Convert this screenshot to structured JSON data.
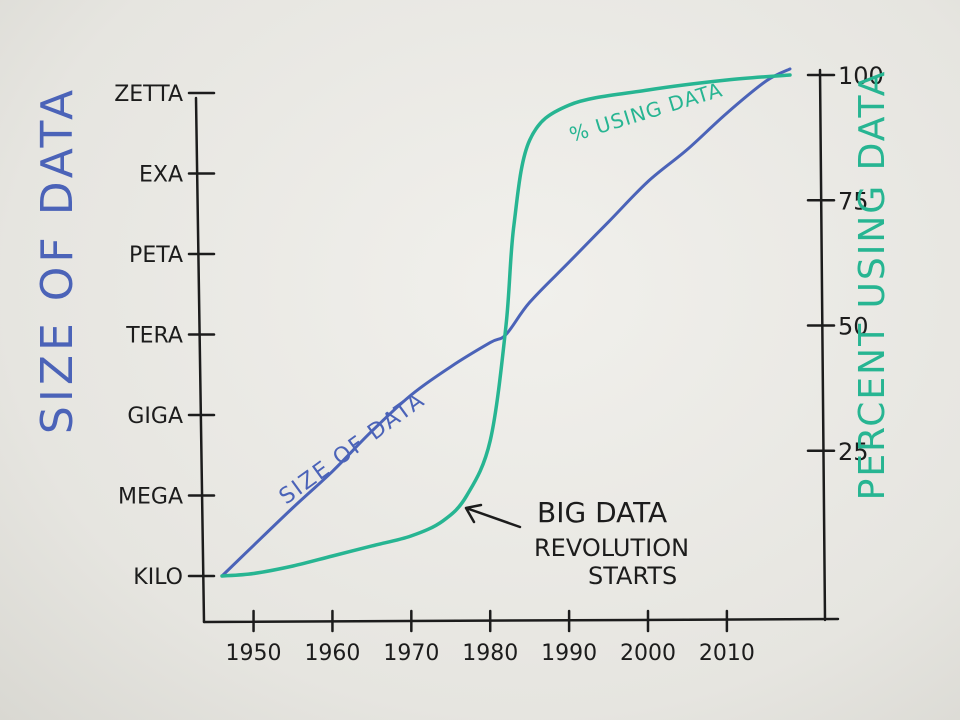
{
  "chart_data": {
    "type": "line",
    "x_tick_labels": [
      "1950",
      "1960",
      "1970",
      "1980",
      "1990",
      "2000",
      "2010"
    ],
    "left_axis": {
      "label": "SIZE OF DATA",
      "tick_labels": [
        "KILO",
        "MEGA",
        "GIGA",
        "TERA",
        "PETA",
        "EXA",
        "ZETTA"
      ]
    },
    "right_axis": {
      "label": "PERCENT USING DATA",
      "tick_labels": [
        "25",
        "50",
        "75",
        "100"
      ],
      "ylim": [
        0,
        100
      ]
    },
    "series": [
      {
        "name": "SIZE OF DATA",
        "axis": "left",
        "color": "#4b63b8",
        "x": [
          1946,
          1950,
          1955,
          1960,
          1965,
          1970,
          1975,
          1980,
          1982,
          1985,
          1990,
          1995,
          2000,
          2005,
          2010,
          2015,
          2018
        ],
        "y": [
          0.0,
          0.38,
          0.85,
          1.3,
          1.8,
          2.25,
          2.6,
          2.9,
          3.0,
          3.4,
          3.9,
          4.4,
          4.9,
          5.3,
          5.75,
          6.15,
          6.3
        ]
      },
      {
        "name": "% USING DATA",
        "axis": "right",
        "color": "#27b592",
        "x": [
          1946,
          1950,
          1955,
          1960,
          1965,
          1970,
          1974,
          1977,
          1980,
          1982,
          1983,
          1985,
          1990,
          2000,
          2010,
          2018
        ],
        "y": [
          0,
          0.5,
          2,
          4,
          6,
          8,
          11,
          16,
          27,
          50,
          70,
          87,
          94,
          97,
          99,
          100
        ]
      }
    ],
    "annotations": [
      {
        "text_lines": [
          "BIG DATA",
          "REVOLUTION",
          "STARTS"
        ],
        "arrow_to": {
          "x": 1977,
          "series": "% USING DATA"
        }
      }
    ]
  },
  "colors": {
    "ink": "#1c1c1c",
    "blue": "#4b63b8",
    "green": "#27b592"
  }
}
